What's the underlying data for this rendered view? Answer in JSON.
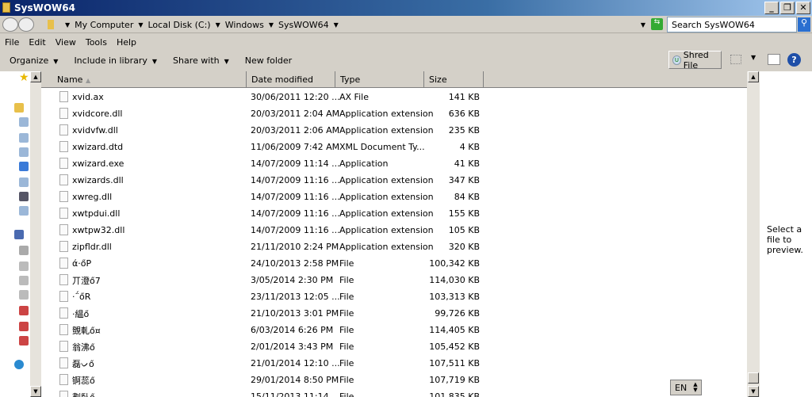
{
  "window": {
    "title": "SysWOW64",
    "controls": [
      "_",
      "❐",
      "✕"
    ]
  },
  "address": {
    "crumbs": [
      "My Computer",
      "Local Disk (C:)",
      "Windows",
      "SysWOW64"
    ],
    "search_placeholder": "Search SysWOW64"
  },
  "menu": [
    "File",
    "Edit",
    "View",
    "Tools",
    "Help"
  ],
  "toolbar": {
    "organize": "Organize",
    "include": "Include in library",
    "share": "Share with",
    "new_folder": "New folder",
    "shred": "Shred File",
    "help": "?"
  },
  "columns": [
    "Name",
    "Date modified",
    "Type",
    "Size"
  ],
  "files": [
    {
      "name": "xvid.ax",
      "date": "30/06/2011 12:20 ...",
      "type": "AX File",
      "size": "141 KB"
    },
    {
      "name": "xvidcore.dll",
      "date": "20/03/2011 2:04 AM",
      "type": "Application extension",
      "size": "636 KB"
    },
    {
      "name": "xvidvfw.dll",
      "date": "20/03/2011 2:06 AM",
      "type": "Application extension",
      "size": "235 KB"
    },
    {
      "name": "xwizard.dtd",
      "date": "11/06/2009 7:42 AM",
      "type": "XML Document Ty...",
      "size": "4 KB"
    },
    {
      "name": "xwizard.exe",
      "date": "14/07/2009 11:14 ...",
      "type": "Application",
      "size": "41 KB"
    },
    {
      "name": "xwizards.dll",
      "date": "14/07/2009 11:16 ...",
      "type": "Application extension",
      "size": "347 KB"
    },
    {
      "name": "xwreg.dll",
      "date": "14/07/2009 11:16 ...",
      "type": "Application extension",
      "size": "84 KB"
    },
    {
      "name": "xwtpdui.dll",
      "date": "14/07/2009 11:16 ...",
      "type": "Application extension",
      "size": "155 KB"
    },
    {
      "name": "xwtpw32.dll",
      "date": "14/07/2009 11:16 ...",
      "type": "Application extension",
      "size": "105 KB"
    },
    {
      "name": "zipfldr.dll",
      "date": "21/11/2010 2:24 PM",
      "type": "Application extension",
      "size": "320 KB"
    },
    {
      "name": "ά·őP",
      "date": "24/10/2013 2:58 PM",
      "type": "File",
      "size": "100,342 KB"
    },
    {
      "name": "丌澄ő7",
      "date": "3/05/2014 2:30 PM",
      "type": "File",
      "size": "114,030 KB"
    },
    {
      "name": "·΅őR",
      "date": "23/11/2013 12:05 ...",
      "type": "File",
      "size": "103,313 KB"
    },
    {
      "name": "·緼ő",
      "date": "21/10/2013 3:01 PM",
      "type": "File",
      "size": "99,726 KB"
    },
    {
      "name": "覴軋ő¤",
      "date": "6/03/2014 6:26 PM",
      "type": "File",
      "size": "114,405 KB"
    },
    {
      "name": "翁沸ő",
      "date": "2/01/2014 3:43 PM",
      "type": "File",
      "size": "105,452 KB"
    },
    {
      "name": "磊ᨆő",
      "date": "21/01/2014 12:10 ...",
      "type": "File",
      "size": "107,511 KB"
    },
    {
      "name": "锕蕊ő",
      "date": "29/01/2014 8:50 PM",
      "type": "File",
      "size": "107,719 KB"
    },
    {
      "name": "劃臥ő",
      "date": "15/11/2013 11:14 ...",
      "type": "File",
      "size": "101,835 KB"
    }
  ],
  "preview_text": "Select a file to preview.",
  "language": "EN"
}
